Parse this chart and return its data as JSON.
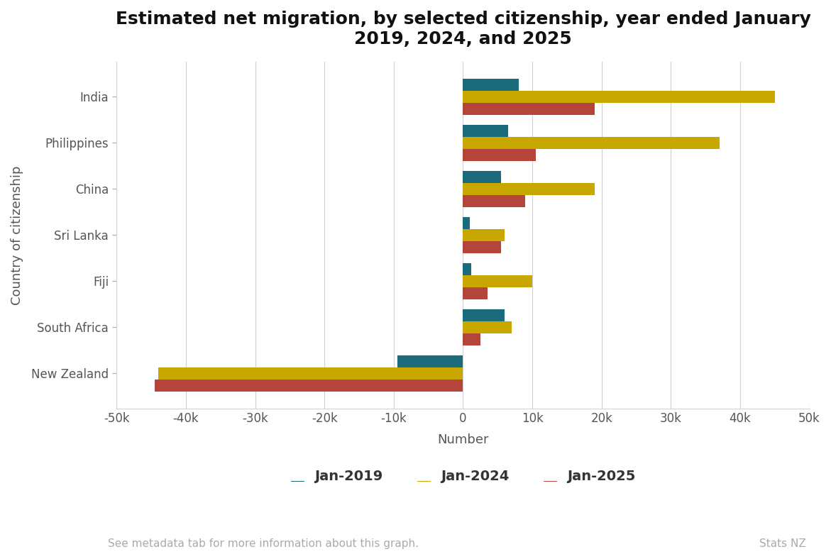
{
  "title": "Estimated net migration, by selected citizenship, year ended January\n2019, 2024, and 2025",
  "categories": [
    "New Zealand",
    "South Africa",
    "Fiji",
    "Sri Lanka",
    "China",
    "Philippines",
    "India"
  ],
  "jan2019": [
    -9500,
    6000,
    1200,
    1000,
    5500,
    6500,
    8000
  ],
  "jan2024": [
    -44000,
    7000,
    10000,
    6000,
    19000,
    37000,
    45000
  ],
  "jan2025": [
    -44500,
    2500,
    3500,
    5500,
    9000,
    10500,
    19000
  ],
  "color_2019": "#1a6b7c",
  "color_2024": "#c8a800",
  "color_2025": "#b5453a",
  "xlabel": "Number",
  "ylabel": "Country of citizenship",
  "xlim": [
    -50000,
    50000
  ],
  "xticks": [
    -50000,
    -40000,
    -30000,
    -20000,
    -10000,
    0,
    10000,
    20000,
    30000,
    40000,
    50000
  ],
  "xtick_labels": [
    "-50k",
    "-40k",
    "-30k",
    "-20k",
    "-10k",
    "0",
    "10k",
    "20k",
    "30k",
    "40k",
    "50k"
  ],
  "legend_labels": [
    "Jan-2019",
    "Jan-2024",
    "Jan-2025"
  ],
  "footer_left": "See metadata tab for more information about this graph.",
  "footer_right": "Stats NZ",
  "background_color": "#ffffff",
  "bar_height": 0.26,
  "grid_color": "#d0d0d8",
  "title_fontsize": 18,
  "axis_label_fontsize": 13,
  "tick_fontsize": 12,
  "legend_fontsize": 14,
  "footer_fontsize": 11
}
